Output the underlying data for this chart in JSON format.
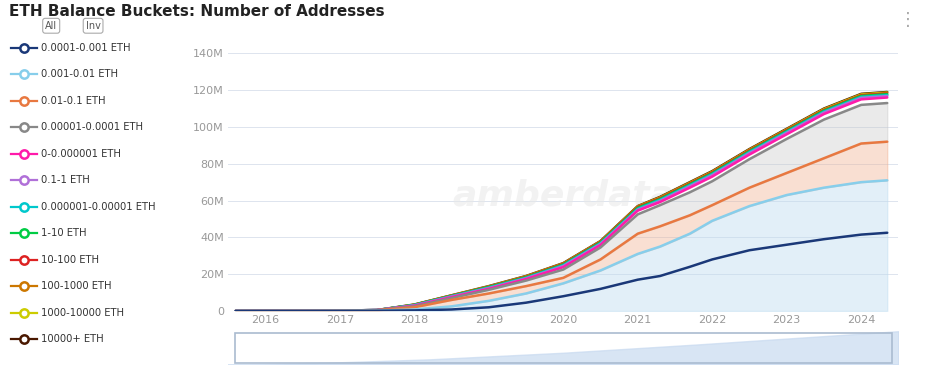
{
  "title": "ETH Balance Buckets: Number of Addresses",
  "ylim": [
    0,
    140000000
  ],
  "yticks": [
    0,
    20000000,
    40000000,
    60000000,
    80000000,
    100000000,
    120000000,
    140000000
  ],
  "ytick_labels": [
    "0",
    "20M",
    "40M",
    "60M",
    "80M",
    "100M",
    "120M",
    "140M"
  ],
  "xticks": [
    2016,
    2017,
    2018,
    2019,
    2020,
    2021,
    2022,
    2023,
    2024
  ],
  "years": [
    2015.6,
    2016.0,
    2016.5,
    2017.0,
    2017.5,
    2018.0,
    2018.5,
    2019.0,
    2019.5,
    2020.0,
    2020.5,
    2021.0,
    2021.3,
    2021.7,
    2022.0,
    2022.5,
    2023.0,
    2023.5,
    2024.0,
    2024.35
  ],
  "legend_items": [
    {
      "label": "0.0001-0.001 ETH",
      "color": "#1a3878"
    },
    {
      "label": "0.001-0.01 ETH",
      "color": "#87ceeb"
    },
    {
      "label": "0.01-0.1 ETH",
      "color": "#e87840"
    },
    {
      "label": "0.00001-0.0001 ETH",
      "color": "#888888"
    },
    {
      "label": "0-0.000001 ETH",
      "color": "#ff1aaa"
    },
    {
      "label": "0.1-1 ETH",
      "color": "#b070d8"
    },
    {
      "label": "0.000001-0.00001 ETH",
      "color": "#00c8cc"
    },
    {
      "label": "1-10 ETH",
      "color": "#00cc44"
    },
    {
      "label": "10-100 ETH",
      "color": "#dd2222"
    },
    {
      "label": "100-1000 ETH",
      "color": "#cc7700"
    },
    {
      "label": "1000-10000 ETH",
      "color": "#cccc00"
    },
    {
      "label": "10000+ ETH",
      "color": "#4a1800"
    }
  ],
  "series": {
    "top_line": {
      "label": "10000+ ETH",
      "color": "#4a1800",
      "lw": 1.8,
      "values": [
        0.0,
        0.05,
        0.1,
        0.2,
        0.5,
        3.5,
        8.5,
        13.5,
        19,
        26,
        38,
        57,
        62,
        70,
        76,
        88,
        99,
        110,
        118,
        119
      ]
    },
    "line_1000_10000": {
      "label": "1000-10000 ETH",
      "color": "#cccc00",
      "lw": 1.5,
      "values": [
        0.0,
        0.05,
        0.1,
        0.2,
        0.5,
        3.5,
        8.5,
        13.4,
        18.9,
        25.9,
        37.9,
        56.9,
        61.8,
        69.8,
        75.8,
        87.8,
        98.8,
        109.8,
        117.8,
        118.8
      ]
    },
    "line_100_1000": {
      "label": "100-1000 ETH",
      "color": "#cc7700",
      "lw": 1.5,
      "values": [
        0.0,
        0.05,
        0.1,
        0.2,
        0.5,
        3.5,
        8.5,
        13.3,
        18.8,
        25.8,
        37.8,
        56.8,
        61.6,
        69.6,
        75.6,
        87.6,
        98.6,
        109.5,
        117.5,
        118.5
      ]
    },
    "line_10_100": {
      "label": "10-100 ETH",
      "color": "#dd2222",
      "lw": 1.5,
      "values": [
        0.0,
        0.05,
        0.1,
        0.2,
        0.5,
        3.4,
        8.4,
        13.2,
        18.6,
        25.6,
        37.6,
        56.5,
        61.3,
        69.3,
        75.3,
        87.3,
        98.3,
        109.2,
        117.2,
        118.2
      ]
    },
    "line_1_10": {
      "label": "1-10 ETH",
      "color": "#00cc44",
      "lw": 1.8,
      "values": [
        0.0,
        0.05,
        0.1,
        0.2,
        0.5,
        3.3,
        8.2,
        13.0,
        18.3,
        25.2,
        37.2,
        56.0,
        60.8,
        68.8,
        74.8,
        86.8,
        97.8,
        108.8,
        116.8,
        117.8
      ]
    },
    "line_0000001_00001": {
      "label": "0.000001-0.00001 ETH",
      "color": "#00c8cc",
      "lw": 1.8,
      "values": [
        0.0,
        0.05,
        0.1,
        0.2,
        0.5,
        3.2,
        8.0,
        12.7,
        18.0,
        24.8,
        36.8,
        55.5,
        60.3,
        68.3,
        74.3,
        86.3,
        97.3,
        108.3,
        116.3,
        117.3
      ]
    },
    "line_01_1": {
      "label": "0.1-1 ETH",
      "color": "#b070d8",
      "lw": 1.8,
      "values": [
        0.0,
        0.05,
        0.1,
        0.2,
        0.5,
        3.0,
        7.8,
        12.4,
        17.7,
        24.4,
        36.4,
        55.0,
        59.8,
        67.8,
        73.8,
        85.8,
        96.8,
        107.8,
        115.8,
        116.8
      ]
    },
    "line_0_0000001": {
      "label": "0-0.000001 ETH",
      "color": "#ff1aaa",
      "lw": 1.8,
      "values": [
        0.0,
        0.05,
        0.1,
        0.2,
        0.5,
        2.8,
        7.5,
        12.0,
        17.3,
        23.8,
        35.8,
        54.5,
        59.2,
        67.0,
        73.0,
        85.0,
        96.0,
        107.0,
        115.0,
        116.0
      ]
    },
    "gray_line": {
      "label": "0.00001-0.0001 ETH",
      "color": "#888888",
      "lw": 1.8,
      "fill_above": "#c8c8c8",
      "fill_alpha": 0.38,
      "values": [
        0.0,
        0.05,
        0.1,
        0.2,
        0.5,
        2.5,
        7.0,
        11.5,
        16.5,
        22.5,
        34.5,
        52.5,
        57.5,
        64.5,
        70.5,
        82.5,
        93.5,
        104.0,
        112.0,
        113.0
      ]
    },
    "orange_line": {
      "label": "0.01-0.1 ETH",
      "color": "#e87840",
      "lw": 1.8,
      "fill_above": "#f0b090",
      "fill_alpha": 0.4,
      "values": [
        0.0,
        0.05,
        0.1,
        0.2,
        0.4,
        2.0,
        6.0,
        9.5,
        13.5,
        18.0,
        28.0,
        42.0,
        46.0,
        52.0,
        57.5,
        67.0,
        75.0,
        83.0,
        91.0,
        92.0
      ]
    },
    "light_blue_line": {
      "label": "0.001-0.01 ETH",
      "color": "#87ceeb",
      "lw": 1.8,
      "fill_above": "#c0ddf0",
      "fill_alpha": 0.45,
      "values": [
        0.0,
        0.02,
        0.05,
        0.1,
        0.2,
        0.8,
        2.5,
        5.5,
        9.5,
        15.0,
        22.0,
        31.0,
        35.0,
        42.0,
        49.0,
        57.0,
        63.0,
        67.0,
        70.0,
        71.0
      ]
    },
    "dark_blue_line": {
      "label": "0.0001-0.001 ETH",
      "color": "#1a3878",
      "lw": 1.8,
      "values": [
        0.0,
        0.01,
        0.02,
        0.05,
        0.1,
        0.3,
        0.8,
        2.0,
        4.5,
        8.0,
        12.0,
        17.0,
        19.0,
        24.0,
        28.0,
        33.0,
        36.0,
        39.0,
        41.5,
        42.5
      ]
    }
  }
}
